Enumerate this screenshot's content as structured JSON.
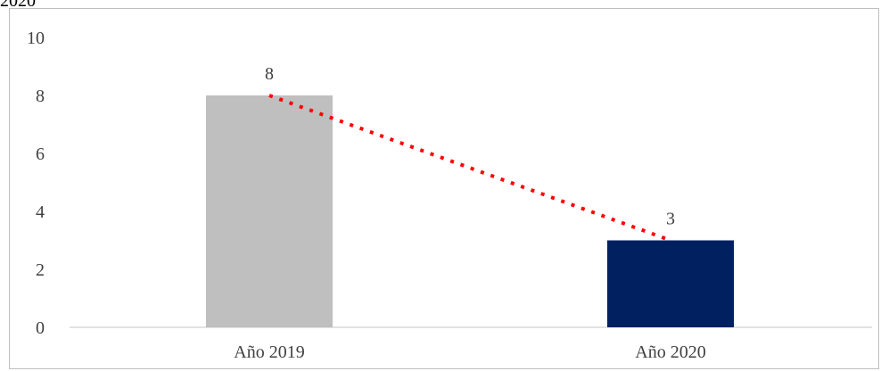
{
  "page": {
    "cropped_title_fragment": "2020"
  },
  "chart_data": {
    "type": "bar",
    "categories": [
      "Año 2019",
      "Año 2020"
    ],
    "values": [
      8,
      3
    ],
    "data_labels": [
      "8",
      "3"
    ],
    "bar_colors": [
      "#bfbfbf",
      "#002060"
    ],
    "trendline": {
      "style": "dotted",
      "color": "#ff0000"
    },
    "title": "",
    "xlabel": "",
    "ylabel": "",
    "ylim": [
      0,
      10
    ],
    "yticks": [
      0,
      2,
      4,
      6,
      8,
      10
    ],
    "grid": false,
    "legend": "none"
  }
}
